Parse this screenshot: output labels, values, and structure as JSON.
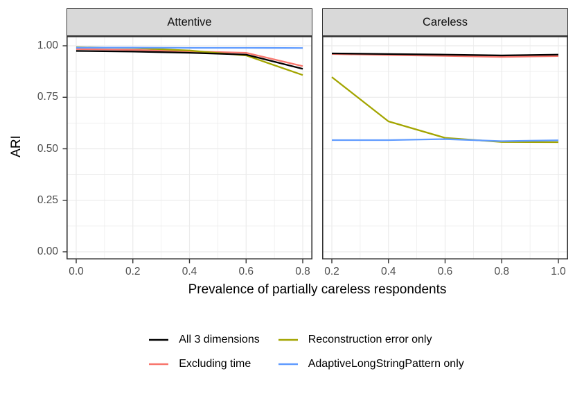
{
  "figure": {
    "xlabel": "Prevalence of partially careless respondents",
    "ylabel": "ARI"
  },
  "chart_data": {
    "type": "line",
    "title": "",
    "xlabel": "Prevalence of partially careless respondents",
    "ylabel": "ARI",
    "ylim": [
      0,
      1
    ],
    "y_tick_values": [
      1.0,
      0.75,
      0.5,
      0.25,
      0.0
    ],
    "y_tick_labels": [
      "1.00",
      "0.75",
      "0.50",
      "0.25",
      "0.00"
    ],
    "grid": "major and minor, light gray, theme_bw",
    "legend_position": "bottom",
    "facets": [
      {
        "title": "Attentive",
        "x": [
          0.0,
          0.2,
          0.4,
          0.6,
          0.8
        ],
        "x_tick_labels": [
          "0.0",
          "0.2",
          "0.4",
          "0.6",
          "0.8"
        ],
        "series": [
          {
            "name": "All 3 dimensions",
            "color": "#000000",
            "values": [
              0.975,
              0.972,
              0.966,
              0.957,
              0.888
            ]
          },
          {
            "name": "Excluding time",
            "color": "#F8766D",
            "values": [
              0.984,
              0.98,
              0.973,
              0.966,
              0.901
            ]
          },
          {
            "name": "Reconstruction error only",
            "color": "#A3A500",
            "values": [
              0.993,
              0.989,
              0.977,
              0.953,
              0.858
            ]
          },
          {
            "name": "AdaptiveLongStringPattern only",
            "color": "#619CFF",
            "values": [
              0.991,
              0.991,
              0.99,
              0.99,
              0.989
            ]
          }
        ]
      },
      {
        "title": "Careless",
        "x": [
          0.2,
          0.4,
          0.6,
          0.8,
          1.0
        ],
        "x_tick_labels": [
          "0.2",
          "0.4",
          "0.6",
          "0.8",
          "1.0"
        ],
        "series": [
          {
            "name": "All 3 dimensions",
            "color": "#000000",
            "values": [
              0.963,
              0.96,
              0.957,
              0.953,
              0.957
            ]
          },
          {
            "name": "Excluding time",
            "color": "#F8766D",
            "values": [
              0.96,
              0.955,
              0.951,
              0.946,
              0.95
            ]
          },
          {
            "name": "Reconstruction error only",
            "color": "#A3A500",
            "values": [
              0.848,
              0.633,
              0.553,
              0.533,
              0.532
            ]
          },
          {
            "name": "AdaptiveLongStringPattern only",
            "color": "#619CFF",
            "values": [
              0.542,
              0.542,
              0.547,
              0.537,
              0.541
            ]
          }
        ]
      }
    ]
  },
  "legend": {
    "items": [
      {
        "label": "All 3 dimensions",
        "color": "#000000"
      },
      {
        "label": "Reconstruction error only",
        "color": "#A3A500"
      },
      {
        "label": "Excluding time",
        "color": "#F8766D"
      },
      {
        "label": "AdaptiveLongStringPattern only",
        "color": "#619CFF"
      }
    ]
  },
  "colors": {
    "strip_bg": "#D9D9D9",
    "panel_border": "#333333",
    "gridline": "#EBEBEB",
    "tick_text": "#4D4D4D"
  }
}
